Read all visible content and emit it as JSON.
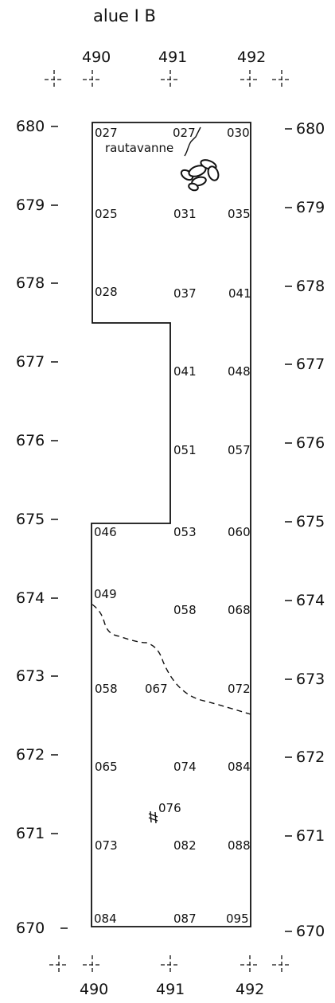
{
  "title": "alue I B",
  "x_labels": [
    "490",
    "491",
    "492"
  ],
  "y_labels": [
    "680",
    "679",
    "678",
    "677",
    "676",
    "675",
    "674",
    "673",
    "672",
    "671",
    "670"
  ],
  "annotation": "rautavanne",
  "elevations": [
    "027",
    "027",
    "030",
    "025",
    "031",
    "035",
    "028",
    "037",
    "041",
    "041",
    "048",
    "051",
    "057",
    "046",
    "053",
    "060",
    "049",
    "058",
    "068",
    "058",
    "067",
    "072",
    "065",
    "074",
    "084",
    "076",
    "073",
    "082",
    "088",
    "084",
    "087",
    "095"
  ]
}
